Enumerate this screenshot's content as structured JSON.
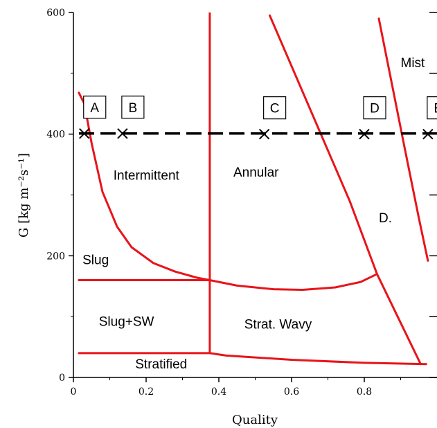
{
  "chart_data": {
    "type": "line",
    "title": "",
    "xlabel": "Quality",
    "ylabel": "G [kg m⁻²s⁻¹]",
    "xlim": [
      0,
      1
    ],
    "ylim": [
      0,
      600
    ],
    "x_ticks": [
      0,
      0.2,
      0.4,
      0.6,
      0.8
    ],
    "x_tick_labels": [
      "0",
      "0.2",
      "0.4",
      "0.6",
      "0.8"
    ],
    "y_ticks": [
      0,
      200,
      400,
      600
    ],
    "y_tick_labels": [
      "0",
      "200",
      "400",
      "600"
    ],
    "grid": false,
    "line_color": "#e8141a",
    "marker_color": "#000000",
    "curves": [
      {
        "points": [
          [
            0.015,
            468
          ],
          [
            0.03,
            450
          ],
          [
            0.05,
            385
          ],
          [
            0.08,
            305
          ],
          [
            0.12,
            248
          ],
          [
            0.16,
            214
          ],
          [
            0.22,
            188
          ],
          [
            0.28,
            174
          ],
          [
            0.34,
            164
          ],
          [
            0.375,
            160
          ]
        ]
      },
      {
        "points": [
          [
            0.375,
            160
          ],
          [
            0.45,
            151
          ],
          [
            0.55,
            145
          ],
          [
            0.63,
            144
          ],
          [
            0.72,
            148
          ],
          [
            0.79,
            157
          ],
          [
            0.835,
            170
          ]
        ]
      },
      {
        "points": [
          [
            0.015,
            160
          ],
          [
            0.375,
            160
          ]
        ]
      },
      {
        "points": [
          [
            0.375,
            600
          ],
          [
            0.375,
            40
          ]
        ]
      },
      {
        "points": [
          [
            0.015,
            40
          ],
          [
            0.375,
            40
          ],
          [
            0.42,
            36
          ],
          [
            0.6,
            29
          ],
          [
            0.8,
            24
          ],
          [
            0.97,
            22
          ]
        ]
      },
      {
        "points": [
          [
            0.54,
            595
          ],
          [
            0.76,
            290
          ],
          [
            0.835,
            170
          ],
          [
            0.955,
            22
          ]
        ]
      },
      {
        "points": [
          [
            0.84,
            590
          ],
          [
            0.87,
            500
          ],
          [
            0.91,
            380
          ],
          [
            0.95,
            262
          ],
          [
            0.975,
            192
          ]
        ]
      }
    ],
    "series": [
      {
        "name": "",
        "x": [
          0.03,
          0.135,
          0.525,
          0.8,
          0.975
        ],
        "y": [
          401,
          401,
          400,
          400,
          400
        ]
      }
    ],
    "point_labels": [
      {
        "text": "A",
        "x": 0.03,
        "y": 401
      },
      {
        "text": "B",
        "x": 0.135,
        "y": 401
      },
      {
        "text": "C",
        "x": 0.525,
        "y": 400
      },
      {
        "text": "D",
        "x": 0.8,
        "y": 400
      },
      {
        "text": "E",
        "x": 0.975,
        "y": 400
      }
    ],
    "annotations": [
      {
        "text": "Intermittent",
        "x": 0.11,
        "y": 325
      },
      {
        "text": "Annular",
        "x": 0.44,
        "y": 330
      },
      {
        "text": "Mist",
        "x": 0.9,
        "y": 510
      },
      {
        "text": "D.",
        "x": 0.84,
        "y": 255
      },
      {
        "text": "Slug",
        "x": 0.025,
        "y": 186
      },
      {
        "text": "Slug+SW",
        "x": 0.07,
        "y": 85
      },
      {
        "text": "Strat. Wavy",
        "x": 0.47,
        "y": 80
      },
      {
        "text": "Stratified",
        "x": 0.17,
        "y": 15
      }
    ]
  }
}
